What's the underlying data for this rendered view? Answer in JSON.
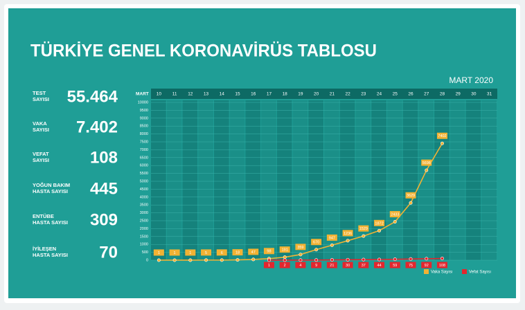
{
  "title": "TÜRKİYE GENEL KORONAVİRÜS TABLOSU",
  "stats": [
    {
      "label": [
        "TEST",
        "SAYISI"
      ],
      "value": "55.464"
    },
    {
      "label": [
        "VAKA",
        "SAYISI"
      ],
      "value": "7.402"
    },
    {
      "label": [
        "VEFAT",
        "SAYISI"
      ],
      "value": "108"
    },
    {
      "label": [
        "YOĞUN BAKIM",
        "HASTA SAYISI"
      ],
      "value": "445"
    },
    {
      "label": [
        "ENTÜBE",
        "HASTA SAYISI"
      ],
      "value": "309"
    },
    {
      "label": [
        "İYİLEŞEN",
        "HASTA SAYISI"
      ],
      "value": "70"
    }
  ],
  "chart_data": {
    "type": "line",
    "subtitle": "MART 2020",
    "x_label": "MART",
    "categories": [
      "10",
      "11",
      "12",
      "13",
      "14",
      "15",
      "16",
      "17",
      "18",
      "19",
      "20",
      "21",
      "22",
      "23",
      "24",
      "25",
      "26",
      "27",
      "28",
      "29",
      "30",
      "31"
    ],
    "series": [
      {
        "name": "Vaka Sayısı",
        "color": "#f2b233",
        "values": [
          1,
          1,
          1,
          5,
          6,
          18,
          47,
          98,
          191,
          359,
          670,
          947,
          1236,
          1529,
          1872,
          2433,
          3629,
          5698,
          7402,
          null,
          null,
          null
        ]
      },
      {
        "name": "Vefat Sayısı",
        "color": "#e3262e",
        "values": [
          null,
          null,
          null,
          null,
          null,
          null,
          null,
          1,
          2,
          4,
          9,
          21,
          30,
          37,
          44,
          59,
          75,
          92,
          108,
          null,
          null,
          null
        ]
      }
    ],
    "ylim": [
      0,
      10000
    ],
    "yticks": [
      0,
      500,
      1000,
      1500,
      2000,
      2500,
      3000,
      3500,
      4000,
      4500,
      5000,
      5500,
      6000,
      6500,
      7000,
      7500,
      8000,
      8500,
      9000,
      9500,
      10000
    ],
    "grid": true,
    "legend": "bottom-right"
  }
}
